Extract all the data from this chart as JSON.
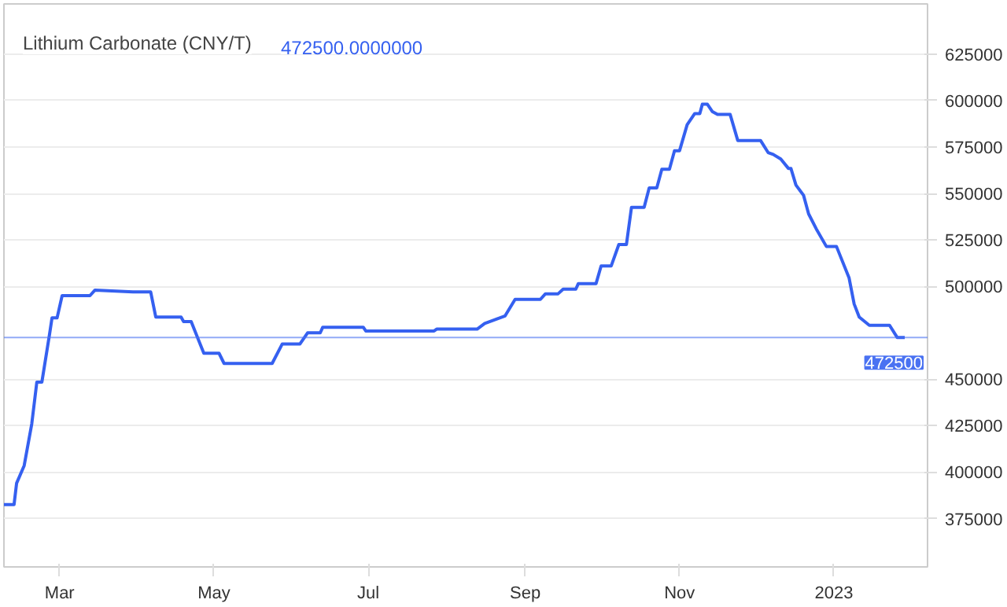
{
  "chart_data": {
    "type": "line",
    "title": "Lithium Carbonate (CNY/T)",
    "annotations": [
      "472500.0000000"
    ],
    "x": [
      "2022-02-07",
      "2022-02-11",
      "2022-02-12",
      "2022-02-15",
      "2022-02-18",
      "2022-02-20",
      "2022-02-22",
      "2022-02-25",
      "2022-02-26",
      "2022-02-28",
      "2022-03-02",
      "2022-03-13",
      "2022-03-15",
      "2022-03-30",
      "2022-04-06",
      "2022-04-08",
      "2022-04-18",
      "2022-04-19",
      "2022-04-22",
      "2022-04-27",
      "2022-05-03",
      "2022-05-05",
      "2022-05-24",
      "2022-05-28",
      "2022-06-04",
      "2022-06-07",
      "2022-06-12",
      "2022-06-13",
      "2022-06-29",
      "2022-06-30",
      "2022-07-27",
      "2022-07-28",
      "2022-08-13",
      "2022-08-16",
      "2022-08-20",
      "2022-08-24",
      "2022-08-28",
      "2022-09-07",
      "2022-09-09",
      "2022-09-14",
      "2022-09-16",
      "2022-09-21",
      "2022-09-22",
      "2022-09-29",
      "2022-10-01",
      "2022-10-05",
      "2022-10-08",
      "2022-10-11",
      "2022-10-13",
      "2022-10-18",
      "2022-10-20",
      "2022-10-23",
      "2022-10-25",
      "2022-10-28",
      "2022-10-30",
      "2022-11-01",
      "2022-11-04",
      "2022-11-07",
      "2022-11-09",
      "2022-11-10",
      "2022-11-12",
      "2022-11-14",
      "2022-11-16",
      "2022-11-21",
      "2022-11-24",
      "2022-12-03",
      "2022-12-06",
      "2022-12-08",
      "2022-12-11",
      "2022-12-14",
      "2022-12-15",
      "2022-12-17",
      "2022-12-20",
      "2022-12-22",
      "2022-12-25",
      "2022-12-29",
      "2023-01-02",
      "2023-01-07",
      "2023-01-09",
      "2023-01-11",
      "2023-01-15",
      "2023-01-23",
      "2023-01-26",
      "2023-01-29"
    ],
    "series": [
      {
        "color": "#3560f0",
        "values": [
          382500,
          382500,
          394000,
          403500,
          426000,
          448500,
          448500,
          474000,
          483000,
          483000,
          495000,
          495000,
          498000,
          497000,
          497000,
          483500,
          483500,
          481000,
          481000,
          464000,
          464000,
          458500,
          458500,
          469000,
          469000,
          475000,
          475000,
          478000,
          478000,
          476000,
          476000,
          477000,
          477000,
          480000,
          482000,
          484000,
          493000,
          493000,
          496000,
          496000,
          498500,
          498500,
          501500,
          501500,
          511000,
          511000,
          522500,
          522500,
          542500,
          542500,
          553000,
          553000,
          563000,
          563000,
          573000,
          573000,
          587000,
          593000,
          593000,
          598000,
          598000,
          594000,
          592500,
          592500,
          578500,
          578500,
          572000,
          571000,
          568500,
          563500,
          563500,
          554500,
          549000,
          539000,
          531000,
          521500,
          521500,
          504500,
          490500,
          483500,
          479000,
          479000,
          472500,
          472500
        ]
      }
    ],
    "xlim": [
      "2022-02-07",
      "2023-02-07"
    ],
    "xticks": [
      {
        "value": "2022-03-01",
        "label": "Mar"
      },
      {
        "value": "2022-05-01",
        "label": "May"
      },
      {
        "value": "2022-07-01",
        "label": "Jul"
      },
      {
        "value": "2022-09-01",
        "label": "Sep"
      },
      {
        "value": "2022-11-01",
        "label": "Nov"
      },
      {
        "value": "2023-01-01",
        "label": "2023"
      }
    ],
    "ylim": [
      349000,
      652000
    ],
    "yticks": [
      375000,
      400000,
      425000,
      450000,
      500000,
      525000,
      550000,
      575000,
      600000,
      625000
    ],
    "ref_lines": [
      {
        "axis": "y",
        "value": 472500,
        "label": "472500",
        "color": "#4a72f2"
      }
    ],
    "grid": true,
    "marker": "none",
    "line_style": "solid"
  }
}
